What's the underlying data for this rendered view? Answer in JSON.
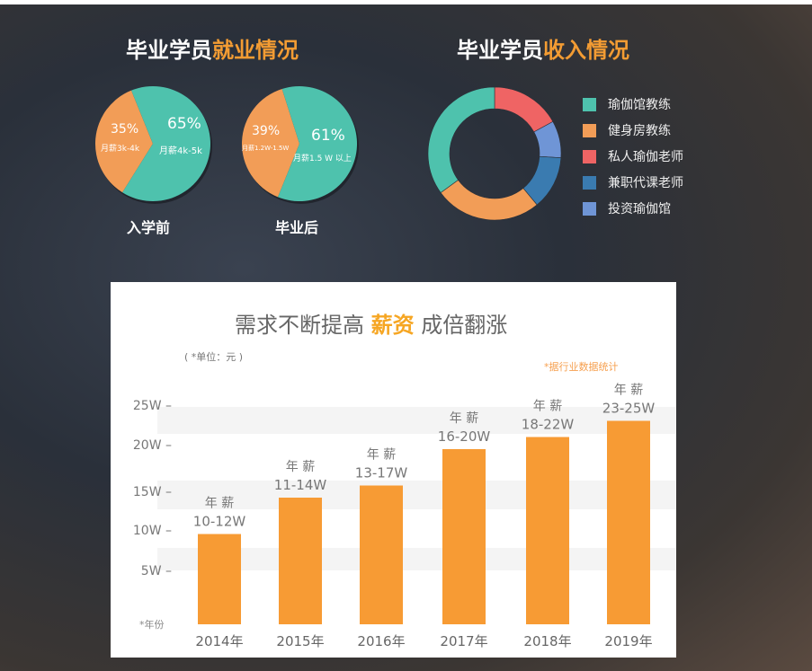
{
  "employment": {
    "title_pre": "毕业学员",
    "title_acc": "就业情况",
    "before": {
      "caption": "入学前",
      "slices": [
        {
          "pct": "35%",
          "label": "月薪3k-4k",
          "value": 35,
          "color": "#f29d57"
        },
        {
          "pct": "65%",
          "label": "月薪4k-5k",
          "value": 65,
          "color": "#4ec2ad"
        }
      ]
    },
    "after": {
      "caption": "毕业后",
      "slices": [
        {
          "pct": "39%",
          "label": "月薪1.2W-1.5W",
          "value": 39,
          "color": "#f29d57"
        },
        {
          "pct": "61%",
          "label": "月薪1.5 W 以上",
          "value": 61,
          "color": "#4ec2ad"
        }
      ]
    }
  },
  "income": {
    "title_pre": "毕业学员",
    "title_acc": "收入情况",
    "segments": [
      {
        "label": "私人瑜伽老师",
        "value": 17,
        "color": "#ef6464"
      },
      {
        "label": "投资瑜伽馆",
        "value": 9,
        "color": "#6f95d6"
      },
      {
        "label": "兼职代课老师",
        "value": 13,
        "color": "#3a7bb0"
      },
      {
        "label": "健身房教练",
        "value": 26,
        "color": "#f29d57"
      },
      {
        "label": "瑜伽馆教练",
        "value": 35,
        "color": "#4ec2ad"
      }
    ],
    "legend": [
      {
        "label": "瑜伽馆教练",
        "color": "#4ec2ad"
      },
      {
        "label": "健身房教练",
        "color": "#f29d57"
      },
      {
        "label": "私人瑜伽老师",
        "color": "#ef6464"
      },
      {
        "label": "兼职代课老师",
        "color": "#3a7bb0"
      },
      {
        "label": "投资瑜伽馆",
        "color": "#6f95d6"
      }
    ]
  },
  "chart_data": {
    "type": "bar",
    "title_pre": "需求不断提高",
    "title_acc": "薪资",
    "title_post": "成倍翻涨",
    "unit": "( *单位：元 )",
    "note": "*据行业数据统计",
    "xlabel": "*年份",
    "yticks": [
      "5W",
      "10W",
      "15W",
      "20W",
      "25W"
    ],
    "ylim": [
      0,
      25
    ],
    "categories": [
      "2014年",
      "2015年",
      "2016年",
      "2017年",
      "2018年",
      "2019年"
    ],
    "values": [
      9.5,
      14,
      15.5,
      20,
      21.5,
      23.5
    ],
    "bar_labels": [
      {
        "top": "年 薪",
        "range": "10-12W"
      },
      {
        "top": "年 薪",
        "range": "11-14W"
      },
      {
        "top": "年 薪",
        "range": "13-17W"
      },
      {
        "top": "年 薪",
        "range": "16-20W"
      },
      {
        "top": "年 薪",
        "range": "18-22W"
      },
      {
        "top": "年 薪",
        "range": "23-25W"
      }
    ],
    "bar_color": "#f79b34",
    "grid": false
  }
}
